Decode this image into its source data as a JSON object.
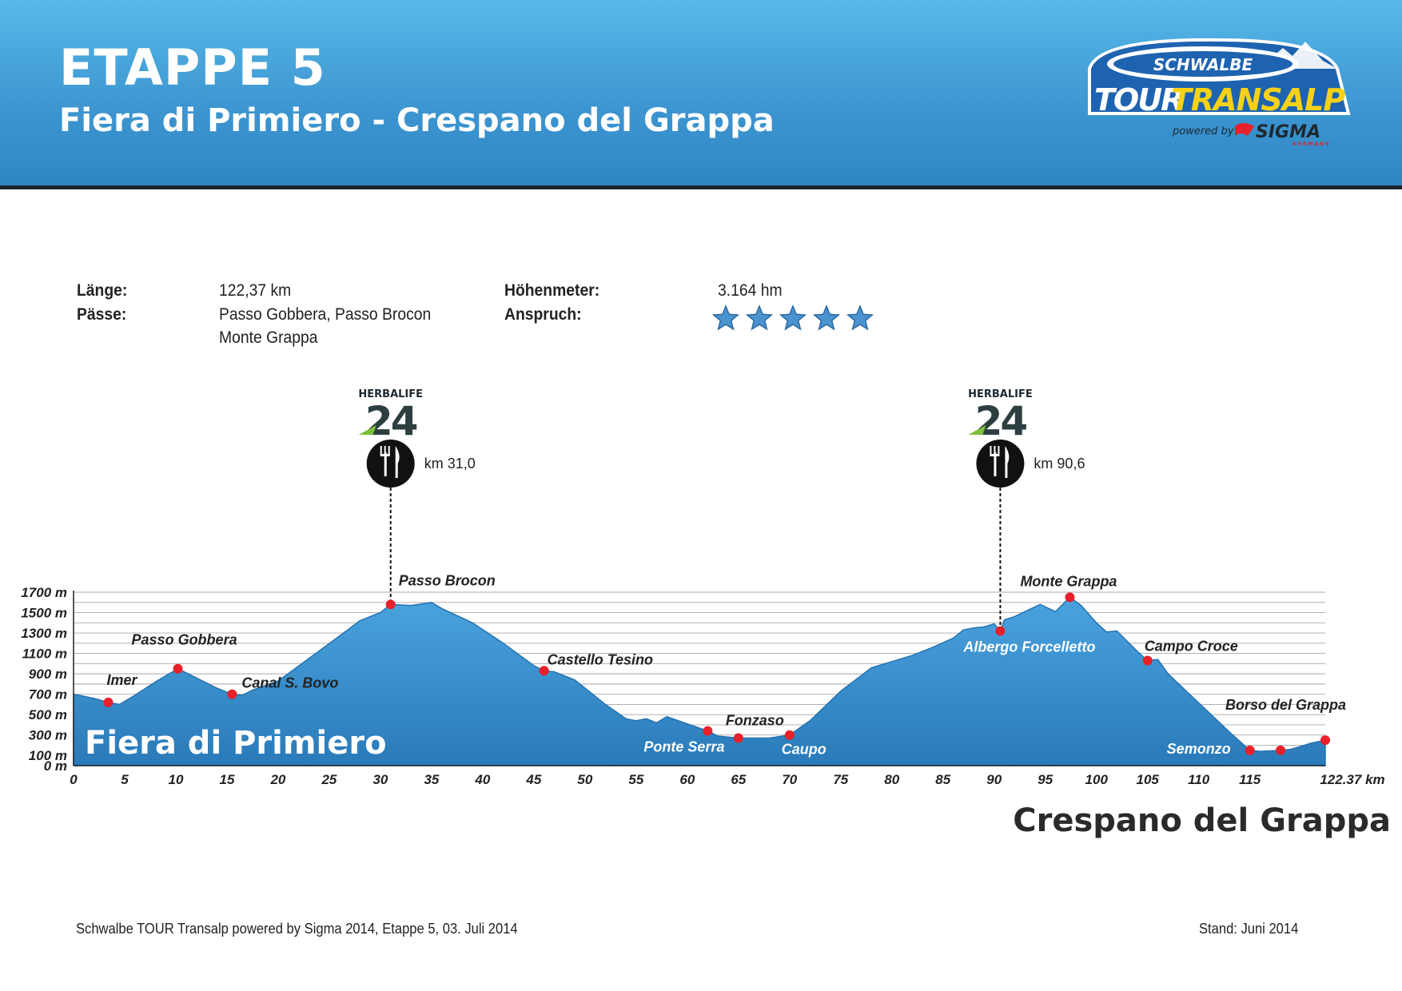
{
  "header": {
    "title": "ETAPPE 5",
    "subtitle": "Fiera di Primiero - Crespano del Grappa",
    "logo": {
      "line1": "SCHWALBE",
      "line2a": "TOUR",
      "line2b": "TRANSALP",
      "powered": "powered by",
      "sigma": "SIGMA",
      "sigma_sub": "GERMANY"
    },
    "colors": {
      "top": "#57b9e8",
      "bottom": "#2f86c4",
      "logo_yellow": "#f7d117",
      "logo_blue": "#1e63b0"
    }
  },
  "info": {
    "length_label": "Länge:",
    "length_value": "122,37 km",
    "passes_label": "Pässe:",
    "passes_line1": "Passo Gobbera, Passo Brocon",
    "passes_line2": "Monte Grappa",
    "elevation_label": "Höhenmeter:",
    "elevation_value": "3.164 hm",
    "difficulty_label": "Anspruch:",
    "difficulty_stars": 5,
    "star_color": "#4a93cf"
  },
  "feed_zones": [
    {
      "brand": "HERBALIFE",
      "number": "24",
      "label": "km 31,0",
      "km": 31.0
    },
    {
      "brand": "HERBALIFE",
      "number": "24",
      "label": "km 90,6",
      "km": 90.6
    }
  ],
  "start_label": "Fiera di Primiero",
  "finish_label": "Crespano del Grappa",
  "chart_data": {
    "type": "area",
    "xlabel": "km",
    "xlim": [
      0,
      122.37
    ],
    "ylim": [
      0,
      1700
    ],
    "grid": true,
    "fill_color": "#2f86c4",
    "marker_color": "#e8202a",
    "x_ticks": [
      0,
      5,
      10,
      15,
      20,
      25,
      30,
      35,
      40,
      45,
      50,
      55,
      60,
      65,
      70,
      75,
      80,
      85,
      90,
      95,
      100,
      105,
      110,
      115
    ],
    "x_tick_labels": [
      "0",
      "5",
      "10",
      "15",
      "20",
      "25",
      "30",
      "35",
      "40",
      "45",
      "50",
      "55",
      "60",
      "65",
      "70",
      "75",
      "80",
      "85",
      "90",
      "95",
      "100",
      "105",
      "110",
      "115"
    ],
    "x_end_label": "122.37 km",
    "y_ticks": [
      0,
      100,
      300,
      500,
      700,
      900,
      1100,
      1300,
      1500,
      1700
    ],
    "y_tick_labels": [
      "0 m",
      "100 m",
      "300 m",
      "500 m",
      "700 m",
      "900 m",
      "1100 m",
      "1300 m",
      "1500 m",
      "1700 m"
    ],
    "profile": {
      "x": [
        0,
        2,
        3.4,
        4.5,
        6,
        8,
        10.2,
        12,
        14,
        15.5,
        16.5,
        17.5,
        20,
        23,
        26,
        28,
        30,
        31,
        33,
        35,
        36,
        39,
        42,
        45,
        46,
        47,
        49,
        52,
        54,
        55,
        56,
        57,
        58,
        60,
        62,
        63,
        65,
        68,
        70,
        72,
        75,
        78,
        80,
        82,
        84,
        86,
        87,
        88,
        89,
        90,
        90.6,
        91,
        92,
        93,
        94.5,
        96,
        97.4,
        98.5,
        100,
        101,
        102,
        104,
        105,
        106,
        107,
        109,
        111,
        113,
        115,
        116,
        118,
        119,
        121,
        122.37
      ],
      "y": [
        700,
        660,
        620,
        600,
        690,
        820,
        950,
        860,
        760,
        700,
        690,
        740,
        830,
        1050,
        1270,
        1420,
        1500,
        1580,
        1570,
        1600,
        1540,
        1400,
        1200,
        980,
        930,
        920,
        840,
        600,
        460,
        440,
        460,
        420,
        480,
        410,
        340,
        290,
        270,
        270,
        300,
        440,
        730,
        960,
        1020,
        1080,
        1160,
        1250,
        1330,
        1350,
        1360,
        1390,
        1320,
        1430,
        1460,
        1510,
        1580,
        1510,
        1650,
        1570,
        1400,
        1310,
        1320,
        1120,
        1030,
        1040,
        900,
        710,
        520,
        330,
        150,
        140,
        150,
        160,
        220,
        250
      ]
    },
    "waypoints": [
      {
        "name": "Imer",
        "km": 3.4,
        "ele": 620,
        "label_color": "#222222"
      },
      {
        "name": "Passo Gobbera",
        "km": 10.2,
        "ele": 950,
        "label_color": "#222222"
      },
      {
        "name": "Canal S. Bovo",
        "km": 15.5,
        "ele": 700,
        "label_color": "#222222"
      },
      {
        "name": "Passo Brocon",
        "km": 31.0,
        "ele": 1580,
        "label_color": "#222222"
      },
      {
        "name": "Castello Tesino",
        "km": 46,
        "ele": 930,
        "label_color": "#222222"
      },
      {
        "name": "Ponte Serra",
        "km": 62,
        "ele": 340,
        "label_color": "#ffffff"
      },
      {
        "name": "Fonzaso",
        "km": 65,
        "ele": 270,
        "label_color": "#222222"
      },
      {
        "name": "Caupo",
        "km": 70,
        "ele": 300,
        "label_color": "#ffffff"
      },
      {
        "name": "Albergo Forcelletto",
        "km": 90.6,
        "ele": 1320,
        "label_color": "#ffffff"
      },
      {
        "name": "Monte Grappa",
        "km": 97.4,
        "ele": 1650,
        "label_color": "#222222"
      },
      {
        "name": "Campo Croce",
        "km": 105,
        "ele": 1030,
        "label_color": "#222222"
      },
      {
        "name": "Semonzo",
        "km": 115,
        "ele": 150,
        "label_color": "#ffffff"
      },
      {
        "name": "",
        "km": 118,
        "ele": 150,
        "label_color": "#ffffff"
      },
      {
        "name": "Borso del Grappa",
        "km": 122.37,
        "ele": 250,
        "label_color": "#222222"
      }
    ]
  },
  "footer": {
    "left": "Schwalbe TOUR Transalp powered by Sigma 2014, Etappe 5, 03. Juli 2014",
    "right": "Stand: Juni 2014"
  }
}
